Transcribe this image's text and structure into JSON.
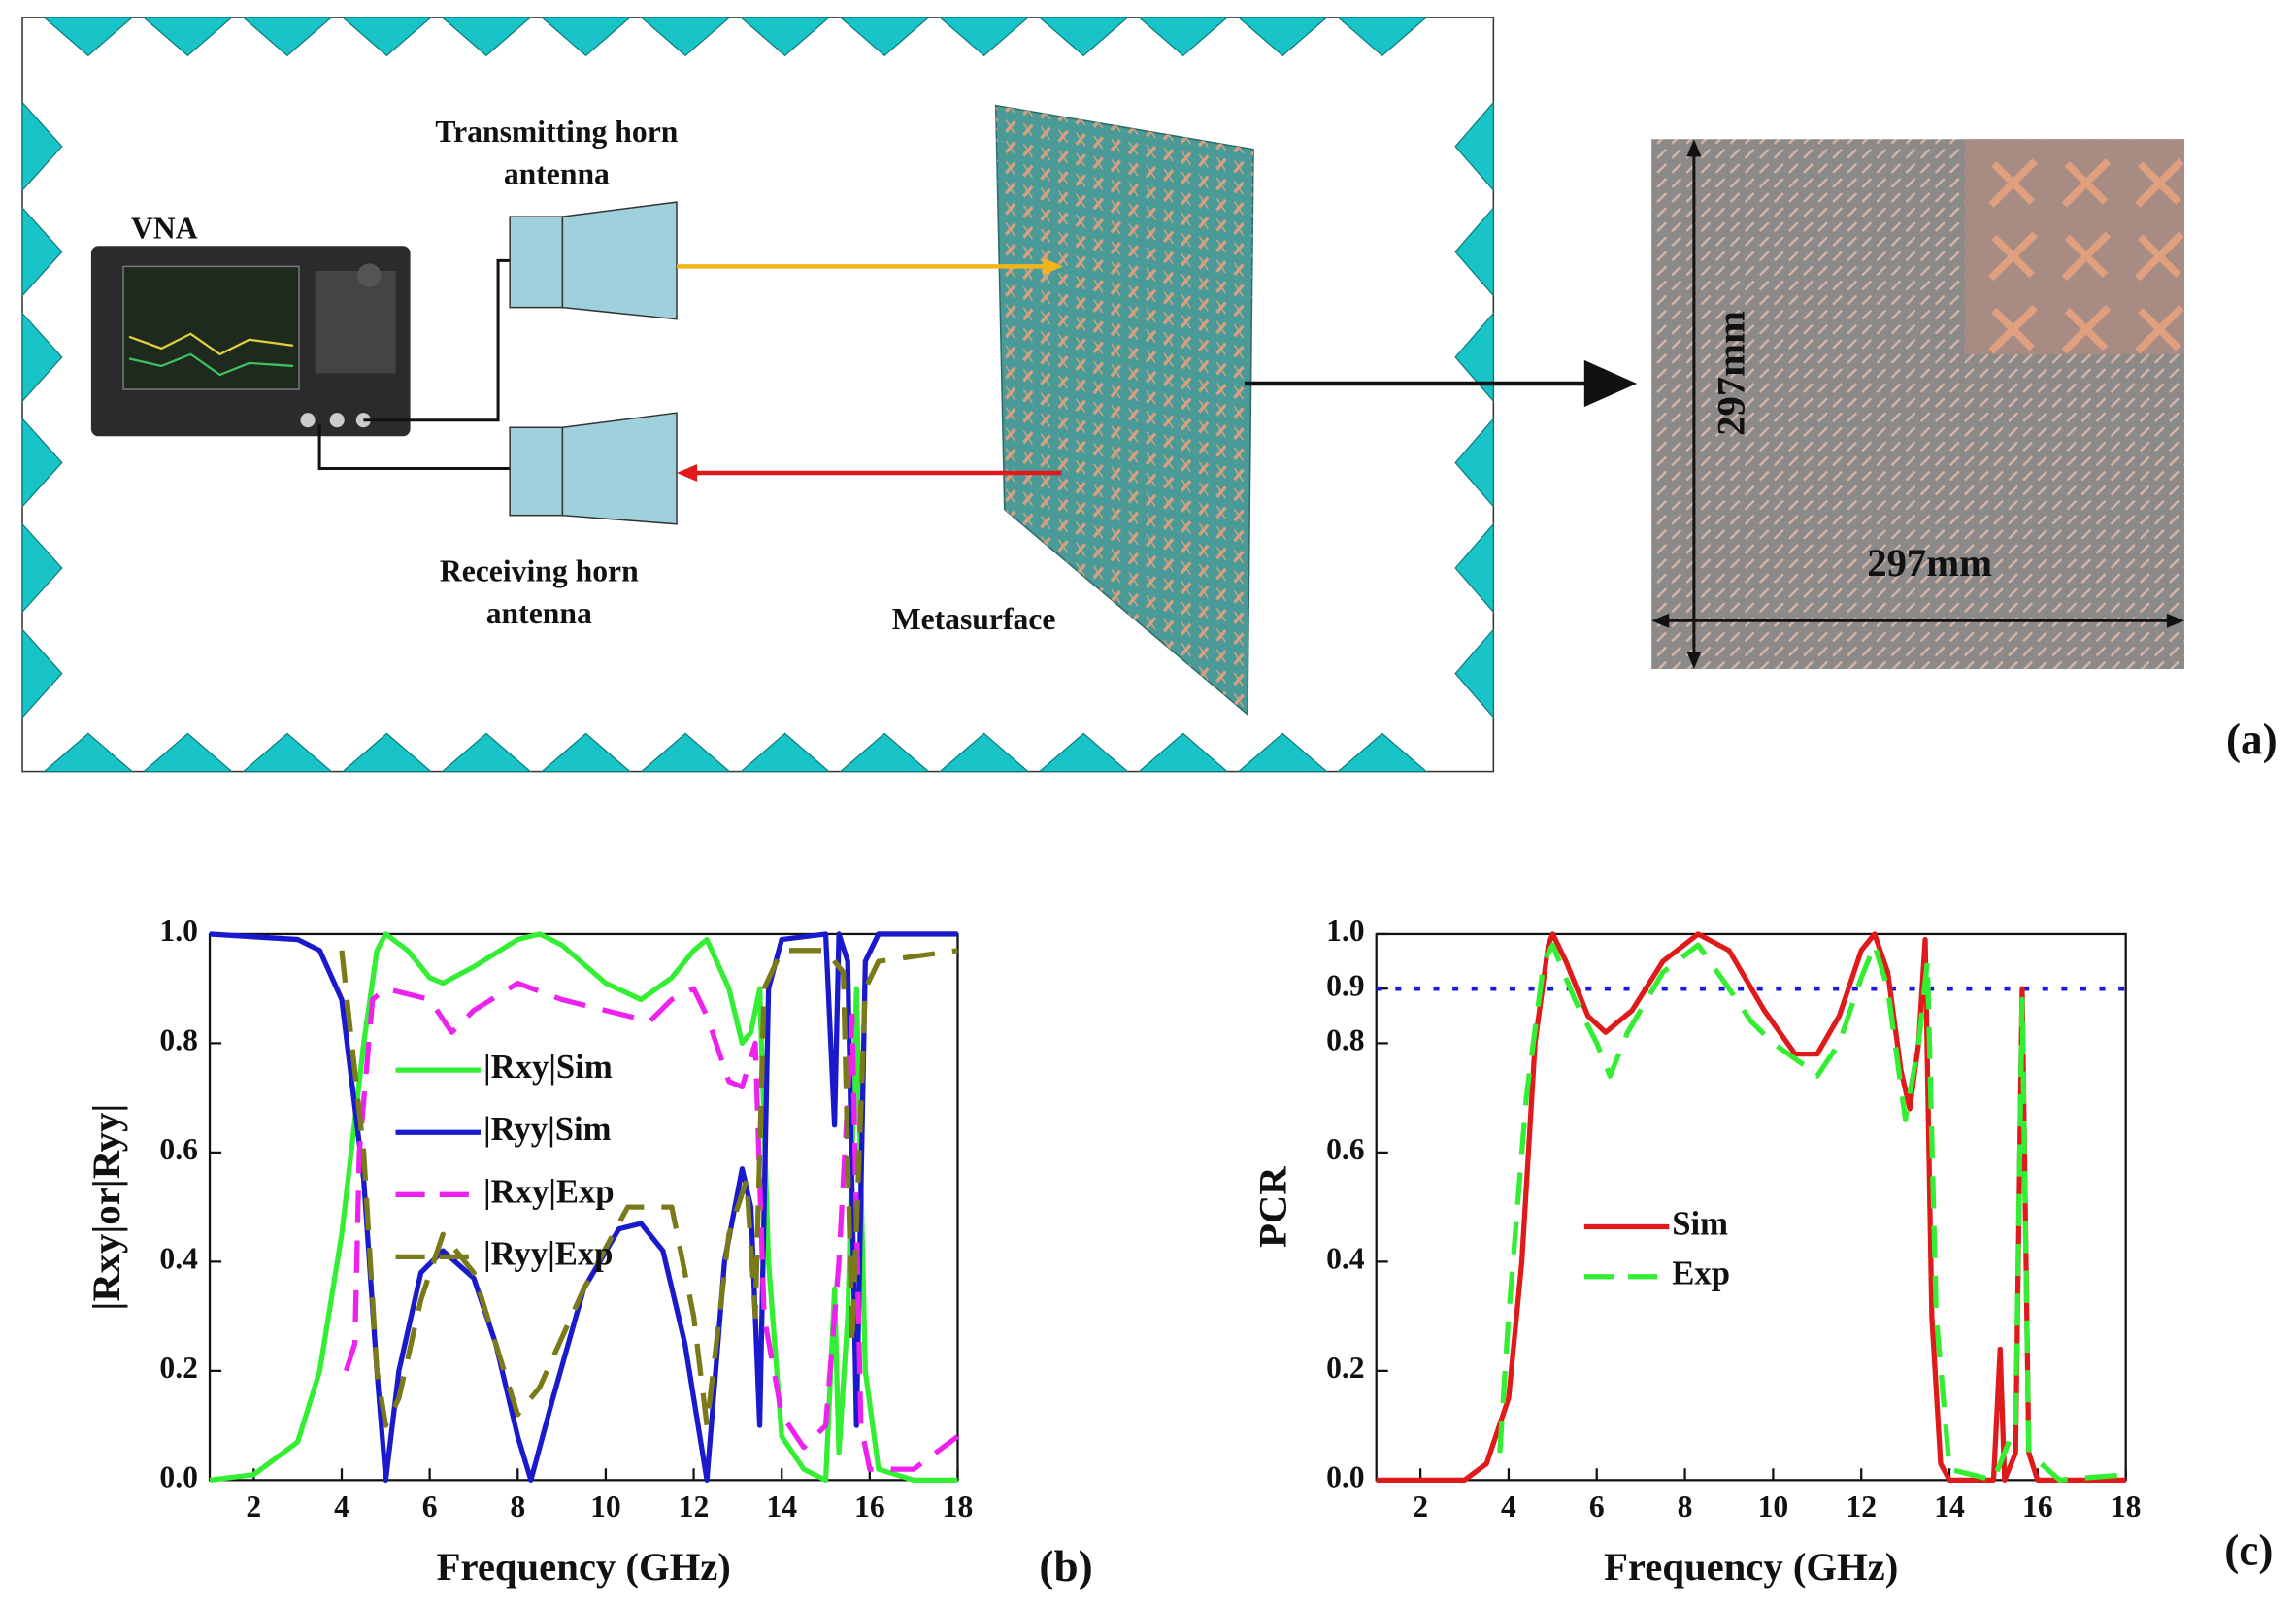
{
  "diagram": {
    "vna_label": "VNA",
    "tx_label": [
      "Transmitting horn",
      "antenna"
    ],
    "rx_label": [
      "Receiving horn",
      "antenna"
    ],
    "metasurface_label": "Metasurface",
    "height_label": "297mm",
    "width_label": "297mm",
    "panel_label": "(a)"
  },
  "chart_data": [
    {
      "type": "line",
      "panel_label": "(b)",
      "x_label": "Frequency (GHz)",
      "y_label": "|Rxy|or|Ryy|",
      "xlim": [
        1,
        18
      ],
      "ylim": [
        0,
        1
      ],
      "xticks": [
        2,
        4,
        6,
        8,
        10,
        12,
        14,
        16,
        18
      ],
      "yticks": [
        {
          "value": 0,
          "label": "0.0"
        },
        {
          "value": 0.2,
          "label": "0.2"
        },
        {
          "value": 0.4,
          "label": "0.4"
        },
        {
          "value": 0.6,
          "label": "0.6"
        },
        {
          "value": 0.8,
          "label": "0.8"
        },
        {
          "value": 1,
          "label": "1.0"
        }
      ],
      "series": [
        {
          "name": "|Rxy|Sim",
          "color": "#33ee33",
          "dash": false,
          "x": [
            1,
            2,
            3,
            3.5,
            4,
            4.5,
            4.8,
            5,
            5.5,
            6,
            6.3,
            7,
            8,
            8.5,
            9,
            10,
            10.8,
            11.5,
            12,
            12.3,
            12.8,
            13.1,
            13.3,
            13.5,
            13.7,
            14,
            14.5,
            15,
            15.2,
            15.3,
            15.5,
            15.7,
            15.9,
            16.2,
            17,
            18
          ],
          "values": [
            0,
            0.01,
            0.07,
            0.2,
            0.45,
            0.8,
            0.97,
            1.0,
            0.97,
            0.92,
            0.91,
            0.94,
            0.99,
            1.0,
            0.98,
            0.91,
            0.88,
            0.92,
            0.97,
            0.99,
            0.9,
            0.8,
            0.82,
            0.9,
            0.4,
            0.08,
            0.02,
            0,
            0.35,
            0.05,
            0.3,
            0.9,
            0.2,
            0.02,
            0,
            0
          ]
        },
        {
          "name": "|Ryy|Sim",
          "color": "#1a1acc",
          "dash": false,
          "x": [
            1,
            3,
            3.5,
            4,
            4.5,
            4.8,
            5,
            5.3,
            5.8,
            6.3,
            7,
            7.5,
            8,
            8.3,
            8.8,
            9.5,
            10.3,
            10.8,
            11.3,
            11.8,
            12.3,
            12.7,
            13.1,
            13.3,
            13.5,
            13.7,
            14,
            15,
            15.2,
            15.3,
            15.5,
            15.7,
            15.9,
            16.2,
            18
          ],
          "values": [
            1,
            0.99,
            0.97,
            0.88,
            0.55,
            0.2,
            0,
            0.2,
            0.38,
            0.42,
            0.37,
            0.25,
            0.08,
            0,
            0.15,
            0.35,
            0.46,
            0.47,
            0.42,
            0.25,
            0,
            0.4,
            0.57,
            0.5,
            0.1,
            0.9,
            0.99,
            1,
            0.65,
            1,
            0.95,
            0.1,
            0.95,
            1,
            1
          ]
        },
        {
          "name": "|Rxy|Exp",
          "color": "#ee22ee",
          "dash": true,
          "x": [
            4.1,
            4.3,
            4.4,
            4.7,
            5,
            6,
            6.5,
            7,
            8,
            9,
            10,
            11,
            11.5,
            12,
            12.3,
            12.8,
            13.1,
            13.4,
            13.6,
            14,
            14.5,
            15,
            15.3,
            15.6,
            15.8,
            16,
            17,
            18
          ],
          "values": [
            0.2,
            0.25,
            0.6,
            0.88,
            0.9,
            0.88,
            0.82,
            0.86,
            0.91,
            0.88,
            0.86,
            0.84,
            0.88,
            0.9,
            0.85,
            0.73,
            0.72,
            0.8,
            0.3,
            0.12,
            0.06,
            0.1,
            0.4,
            0.85,
            0.1,
            0.02,
            0.02,
            0.08
          ]
        },
        {
          "name": "|Ryy|Exp",
          "color": "#7a7a1a",
          "dash": true,
          "x": [
            4,
            4.5,
            4.8,
            5,
            5.3,
            5.8,
            6.3,
            7,
            7.5,
            8,
            8.5,
            9.5,
            10.5,
            11.5,
            12,
            12.3,
            12.8,
            13.2,
            13.4,
            13.6,
            14,
            15,
            15.4,
            15.6,
            15.9,
            16.2,
            18
          ],
          "values": [
            0.97,
            0.6,
            0.2,
            0.1,
            0.15,
            0.33,
            0.45,
            0.38,
            0.25,
            0.12,
            0.17,
            0.35,
            0.5,
            0.5,
            0.3,
            0.1,
            0.45,
            0.55,
            0.3,
            0.9,
            0.97,
            0.97,
            0.93,
            0.25,
            0.9,
            0.95,
            0.97
          ]
        }
      ]
    },
    {
      "type": "line",
      "panel_label": "(c)",
      "x_label": "Frequency (GHz)",
      "y_label": "PCR",
      "xlim": [
        1,
        18
      ],
      "ylim": [
        0,
        1
      ],
      "xticks": [
        2,
        4,
        6,
        8,
        10,
        12,
        14,
        16,
        18
      ],
      "yticks": [
        {
          "value": 0,
          "label": "0.0"
        },
        {
          "value": 0.2,
          "label": "0.2"
        },
        {
          "value": 0.4,
          "label": "0.4"
        },
        {
          "value": 0.6,
          "label": "0.6"
        },
        {
          "value": 0.8,
          "label": "0.8"
        },
        {
          "value": 0.9,
          "label": "0.9"
        },
        {
          "value": 1,
          "label": "1.0"
        }
      ],
      "reference_line": {
        "value": 0.9,
        "color": "#1a1add"
      },
      "series": [
        {
          "name": "Sim",
          "color": "#e01a1a",
          "dash": false,
          "x": [
            1,
            3,
            3.5,
            4,
            4.3,
            4.6,
            4.9,
            5,
            5.3,
            5.8,
            6.2,
            6.8,
            7.5,
            8.3,
            9,
            9.8,
            10.5,
            11,
            11.5,
            12,
            12.3,
            12.6,
            12.9,
            13.1,
            13.3,
            13.45,
            13.6,
            13.8,
            14,
            15,
            15.15,
            15.25,
            15.5,
            15.65,
            15.8,
            16,
            18
          ],
          "values": [
            0,
            0,
            0.03,
            0.15,
            0.4,
            0.8,
            0.98,
            1,
            0.95,
            0.85,
            0.82,
            0.86,
            0.95,
            1,
            0.97,
            0.86,
            0.78,
            0.78,
            0.85,
            0.97,
            1,
            0.93,
            0.75,
            0.68,
            0.8,
            0.99,
            0.3,
            0.03,
            0,
            0,
            0.24,
            0,
            0.05,
            0.9,
            0.05,
            0,
            0
          ]
        },
        {
          "name": "Exp",
          "color": "#33ee33",
          "dash": true,
          "x": [
            3.8,
            4,
            4.4,
            4.8,
            5,
            5.5,
            6,
            6.3,
            6.7,
            7.5,
            8.3,
            9,
            9.5,
            10,
            10.7,
            11,
            11.5,
            12,
            12.3,
            12.6,
            13,
            13.3,
            13.5,
            13.7,
            14,
            15,
            15.5,
            15.65,
            15.8,
            16.5,
            18
          ],
          "values": [
            0.05,
            0.3,
            0.7,
            0.95,
            0.98,
            0.88,
            0.8,
            0.74,
            0.82,
            0.93,
            0.98,
            0.9,
            0.84,
            0.8,
            0.76,
            0.74,
            0.8,
            0.92,
            0.98,
            0.9,
            0.66,
            0.8,
            0.95,
            0.3,
            0.02,
            0,
            0.1,
            0.88,
            0.05,
            0,
            0.01
          ]
        }
      ]
    }
  ]
}
